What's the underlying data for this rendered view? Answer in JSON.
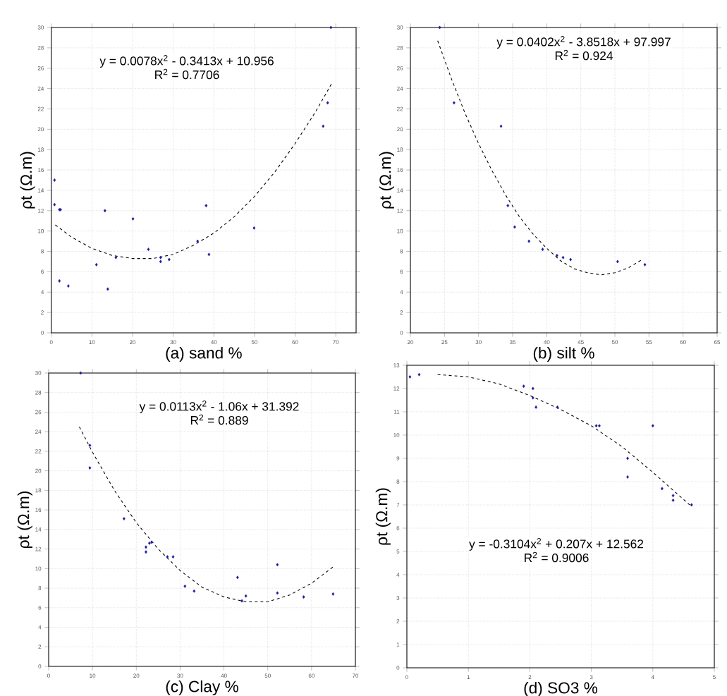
{
  "chart_data": [
    {
      "type": "scatter",
      "xlabel": "(a) sand %",
      "ylabel": "ρt (Ω.m)",
      "xlim": [
        0,
        75
      ],
      "ylim": [
        0,
        30
      ],
      "xticks": [
        0,
        10,
        20,
        30,
        40,
        50,
        60,
        70
      ],
      "yticks": [
        0,
        2,
        4,
        6,
        8,
        10,
        12,
        14,
        16,
        18,
        20,
        22,
        24,
        26,
        28,
        30
      ],
      "grid": true,
      "annotations": [
        "y = 0.0078x$^{2}$ - 0.3413x + 10.956",
        "R$^{2}$ = 0.7706"
      ],
      "series": [
        {
          "color": "#1a1a9c",
          "marker": "diamond",
          "x": [
            0.8,
            0.8,
            2.0,
            2.3,
            2.0,
            4.2,
            11.1,
            13.2,
            13.9,
            15.9,
            20.1,
            23.9,
            26.9,
            26.9,
            29.0,
            36.0,
            38.1,
            38.8,
            49.9,
            66.9,
            68.0,
            68.8
          ],
          "values": [
            15.0,
            12.6,
            12.1,
            12.1,
            5.1,
            4.6,
            6.7,
            12.0,
            4.3,
            7.4,
            11.2,
            8.2,
            7.4,
            7.0,
            7.2,
            9.0,
            12.5,
            7.7,
            10.3,
            20.3,
            22.6,
            30.0
          ]
        },
        {
          "type": "line",
          "color": "#000000",
          "marker": "none",
          "line_style": "dashed",
          "x": [
            1,
            5,
            10,
            15,
            20,
            25,
            30,
            35,
            40,
            45,
            50,
            55,
            60,
            65,
            69
          ],
          "values": [
            10.6,
            9.4,
            8.3,
            7.6,
            7.3,
            7.3,
            7.7,
            8.6,
            9.8,
            11.4,
            13.4,
            15.8,
            18.6,
            21.7,
            24.5
          ]
        }
      ]
    },
    {
      "type": "scatter",
      "xlabel": "(b) silt %",
      "ylabel": "ρt (Ω.m)",
      "xlim": [
        20,
        65
      ],
      "ylim": [
        0,
        30
      ],
      "xticks": [
        20,
        25,
        30,
        35,
        40,
        45,
        50,
        55,
        60,
        65
      ],
      "yticks": [
        0,
        2,
        4,
        6,
        8,
        10,
        12,
        14,
        16,
        18,
        20,
        22,
        24,
        26,
        28,
        30
      ],
      "grid": true,
      "annotations": [
        "y = 0.0402x$^{2}$ - 3.8518x + 97.997",
        "R$^{2}$ = 0.924"
      ],
      "series": [
        {
          "color": "#1a1a9c",
          "marker": "diamond",
          "x": [
            24.3,
            26.4,
            33.3,
            34.3,
            35.3,
            37.4,
            39.4,
            41.5,
            42.4,
            43.5,
            50.4,
            54.4
          ],
          "values": [
            30.0,
            22.6,
            20.3,
            12.5,
            10.4,
            9.0,
            8.2,
            7.6,
            7.4,
            7.2,
            7.0,
            6.7
          ]
        },
        {
          "type": "line",
          "color": "#000000",
          "marker": "none",
          "line_style": "dashed",
          "x": [
            24,
            26,
            28,
            30,
            32,
            34,
            36,
            38,
            40,
            42,
            44,
            46,
            48,
            50,
            52,
            54
          ],
          "values": [
            28.7,
            25.0,
            21.6,
            18.6,
            15.9,
            13.5,
            11.4,
            9.7,
            8.3,
            7.1,
            6.3,
            5.9,
            5.7,
            5.9,
            6.4,
            7.2
          ]
        }
      ]
    },
    {
      "type": "scatter",
      "xlabel": "(c) Clay %",
      "ylabel": "ρt (Ω.m)",
      "xlim": [
        0,
        70
      ],
      "ylim": [
        0,
        30
      ],
      "xticks": [
        0,
        10,
        20,
        30,
        40,
        50,
        60,
        70
      ],
      "yticks": [
        0,
        2,
        4,
        6,
        8,
        10,
        12,
        14,
        16,
        18,
        20,
        22,
        24,
        26,
        28,
        30
      ],
      "grid": true,
      "annotations": [
        "y = 0.0113x$^{2}$ - 1.06x + 31.392",
        "R$^{2}$ = 0.889"
      ],
      "series": [
        {
          "color": "#1a1a9c",
          "marker": "diamond",
          "x": [
            7.3,
            9.4,
            9.4,
            17.2,
            22.2,
            22.2,
            23.0,
            23.5,
            27.1,
            28.4,
            31.1,
            33.2,
            43.1,
            44.1,
            45.0,
            52.2,
            52.2,
            58.2,
            64.9
          ],
          "values": [
            30.0,
            22.6,
            20.3,
            15.1,
            12.2,
            11.7,
            12.6,
            12.7,
            11.2,
            11.2,
            8.2,
            7.7,
            9.1,
            6.7,
            7.2,
            10.4,
            7.5,
            7.1,
            7.4
          ]
        },
        {
          "type": "line",
          "color": "#000000",
          "marker": "none",
          "line_style": "dashed",
          "x": [
            7,
            10,
            15,
            20,
            25,
            30,
            35,
            40,
            45,
            50,
            55,
            60,
            65
          ],
          "values": [
            24.5,
            21.9,
            18.0,
            14.7,
            12.0,
            9.8,
            8.1,
            7.1,
            6.6,
            6.6,
            7.3,
            8.5,
            10.2
          ]
        }
      ]
    },
    {
      "type": "scatter",
      "xlabel": "(d) SO3 %",
      "ylabel": "ρt (Ω.m)",
      "xlim": [
        0,
        5
      ],
      "ylim": [
        0,
        13
      ],
      "xticks": [
        0,
        1,
        2,
        3,
        4,
        5
      ],
      "yticks": [
        0,
        1,
        2,
        3,
        4,
        5,
        6,
        7,
        8,
        9,
        10,
        11,
        12,
        13
      ],
      "grid": true,
      "annotations": [
        "y = -0.3104x$^{2}$ + 0.207x + 12.562",
        "R$^{2}$ = 0.9006"
      ],
      "series": [
        {
          "color": "#1a1a9c",
          "marker": "diamond",
          "x": [
            0.05,
            0.2,
            1.9,
            2.05,
            2.05,
            2.1,
            2.45,
            3.08,
            3.13,
            3.59,
            3.59,
            4.0,
            4.15,
            4.33,
            4.33,
            4.63
          ],
          "values": [
            12.5,
            12.6,
            12.1,
            12.0,
            11.6,
            11.2,
            11.2,
            10.4,
            10.4,
            9.0,
            8.2,
            10.4,
            7.7,
            7.4,
            7.2,
            7.0
          ]
        },
        {
          "type": "line",
          "color": "#000000",
          "marker": "none",
          "line_style": "dashed",
          "x": [
            0.5,
            1,
            1.5,
            2,
            2.5,
            3,
            3.5,
            4,
            4.6
          ],
          "values": [
            12.6,
            12.5,
            12.2,
            11.7,
            11.1,
            10.4,
            9.5,
            8.4,
            7.0
          ]
        }
      ]
    }
  ]
}
